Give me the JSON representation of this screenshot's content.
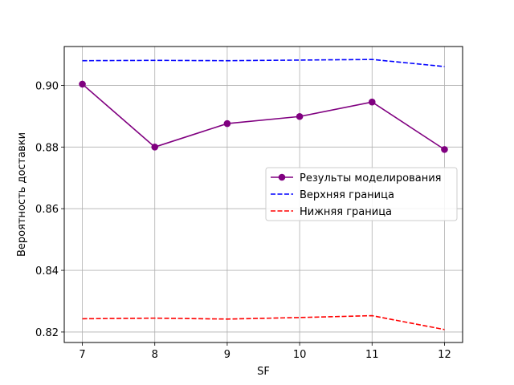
{
  "chart_data": {
    "type": "line",
    "xlabel": "SF",
    "ylabel": "Вероятность доставки",
    "x": [
      7,
      8,
      9,
      10,
      11,
      12
    ],
    "xticks": [
      "7",
      "8",
      "9",
      "10",
      "11",
      "12"
    ],
    "yticks": [
      "0.82",
      "0.84",
      "0.86",
      "0.88",
      "0.90"
    ],
    "ytick_values": [
      0.82,
      0.84,
      0.86,
      0.88,
      0.9
    ],
    "xlim": [
      6.75,
      12.25
    ],
    "ylim": [
      0.8166,
      0.9126
    ],
    "grid": true,
    "legend_position": "center-right",
    "series": [
      {
        "name": "Результы моделирования",
        "color": "#800080",
        "style": "solid",
        "marker": "circle",
        "values": [
          0.9004,
          0.88,
          0.8876,
          0.8899,
          0.8946,
          0.8792
        ]
      },
      {
        "name": "Верхняя граница",
        "color": "#0000ff",
        "style": "dashed",
        "marker": "none",
        "values": [
          0.908,
          0.9081,
          0.908,
          0.9082,
          0.9084,
          0.9061
        ]
      },
      {
        "name": "Нижняя граница",
        "color": "#ff0000",
        "style": "dashed",
        "marker": "none",
        "values": [
          0.8243,
          0.8245,
          0.8242,
          0.8247,
          0.8253,
          0.8208
        ]
      }
    ]
  }
}
